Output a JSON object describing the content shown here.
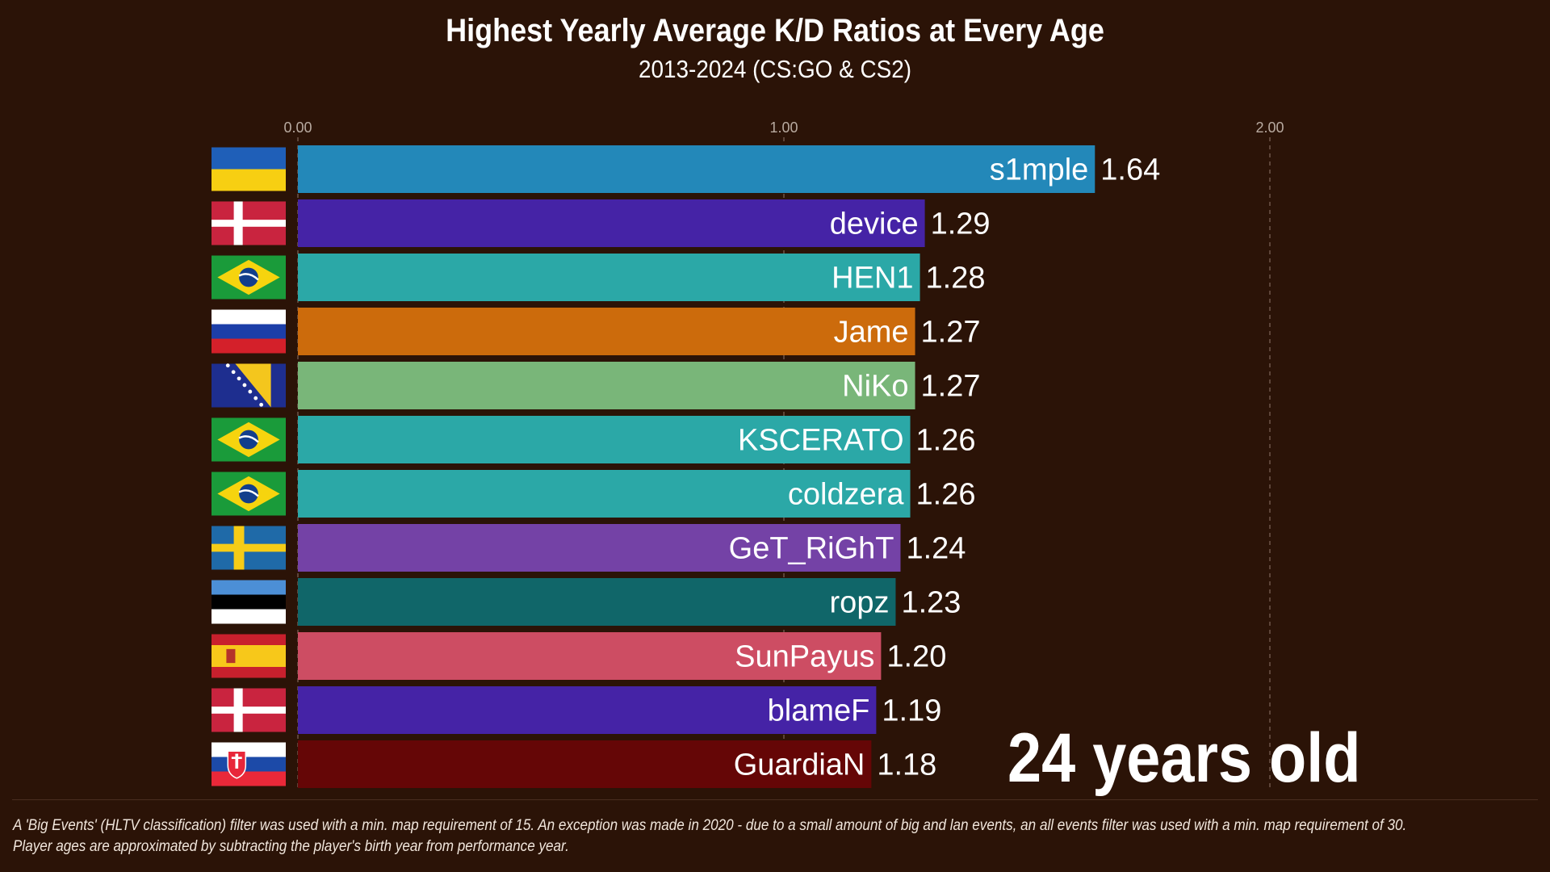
{
  "chart_data": {
    "type": "bar",
    "orientation": "horizontal",
    "title": "Highest Yearly Average K/D Ratios at Every Age",
    "subtitle": "2013-2024 (CS:GO & CS2)",
    "xlim": [
      0,
      2.4
    ],
    "ticks": [
      0,
      1,
      2
    ],
    "tick_labels": [
      "0.00",
      "1.00",
      "2.00"
    ],
    "grid": true,
    "bars": [
      {
        "name": "s1mple",
        "value": 1.64,
        "value_label": "1.64",
        "color": "#2388b9",
        "flag": "ukraine-flag"
      },
      {
        "name": "device",
        "value": 1.29,
        "value_label": "1.29",
        "color": "#4523a6",
        "flag": "denmark-flag"
      },
      {
        "name": "HEN1",
        "value": 1.28,
        "value_label": "1.28",
        "color": "#2ba8a7",
        "flag": "brazil-flag"
      },
      {
        "name": "Jame",
        "value": 1.27,
        "value_label": "1.27",
        "color": "#cc6b0c",
        "flag": "russia-flag"
      },
      {
        "name": "NiKo",
        "value": 1.27,
        "value_label": "1.27",
        "color": "#79b679",
        "flag": "bosnia-flag"
      },
      {
        "name": "KSCERATO",
        "value": 1.26,
        "value_label": "1.26",
        "color": "#2ba8a7",
        "flag": "brazil-flag"
      },
      {
        "name": "coldzera",
        "value": 1.26,
        "value_label": "1.26",
        "color": "#2ba8a7",
        "flag": "brazil-flag"
      },
      {
        "name": "GeT_RiGhT",
        "value": 1.24,
        "value_label": "1.24",
        "color": "#7442a6",
        "flag": "sweden-flag"
      },
      {
        "name": "ropz",
        "value": 1.23,
        "value_label": "1.23",
        "color": "#106669",
        "flag": "estonia-flag"
      },
      {
        "name": "SunPayus",
        "value": 1.2,
        "value_label": "1.20",
        "color": "#cd4d63",
        "flag": "spain-flag"
      },
      {
        "name": "blameF",
        "value": 1.19,
        "value_label": "1.19",
        "color": "#4523a6",
        "flag": "denmark-flag"
      },
      {
        "name": "GuardiaN",
        "value": 1.18,
        "value_label": "1.18",
        "color": "#650606",
        "flag": "slovakia-flag"
      }
    ]
  },
  "age_label": "24 years old",
  "footnote": {
    "line1": "A 'Big Events' (HLTV classification) filter was used with a min. map requirement of 15. An exception was made in 2020 - due to a small amount of big and lan events, an all events filter was used with a min. map requirement of 30.",
    "line2": "Player ages are approximated by subtracting the player's birth year from performance year."
  },
  "colors": {
    "background": "#2b1307",
    "gridline": "#6e5548",
    "tick_text": "#b8aaa0"
  }
}
